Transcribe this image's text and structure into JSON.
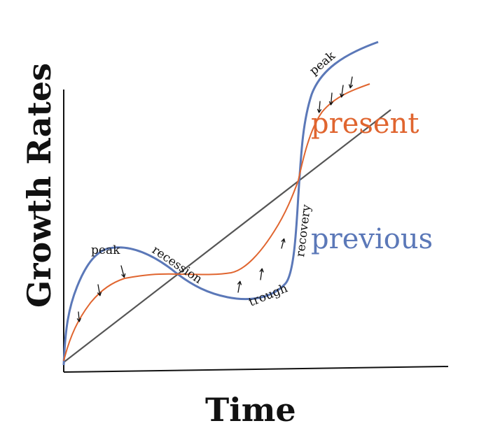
{
  "axes": {
    "y_label": "Growth Rates",
    "x_label": "Time"
  },
  "labels": {
    "peak_left": "peak",
    "peak_right": "peak",
    "recession": "recession",
    "trough": "trough",
    "recovery": "recovery",
    "present": "present",
    "previous": "previous"
  },
  "colors": {
    "previous": "#5b78b8",
    "present": "#e0652f",
    "trend": "#555555",
    "axis": "#111111",
    "arrows": "#111111"
  },
  "arrows": {
    "left_peak_down_count": 3,
    "recovery_up_count": 3,
    "right_peak_down_count": 4
  }
}
